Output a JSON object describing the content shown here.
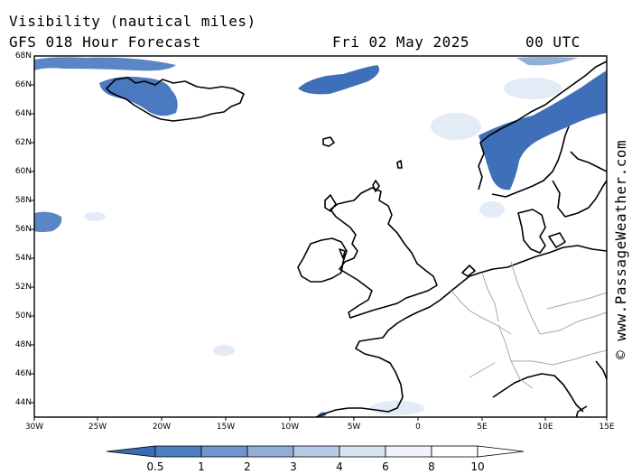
{
  "header": {
    "title": "Visibility (nautical miles)",
    "subtitle": "GFS 018 Hour Forecast",
    "date": "Fri 02 May 2025",
    "time": "00 UTC"
  },
  "map": {
    "lat_labels": [
      "68N",
      "66N",
      "64N",
      "62N",
      "60N",
      "58N",
      "56N",
      "54N",
      "52N",
      "50N",
      "48N",
      "46N",
      "44N"
    ],
    "lon_labels": [
      "30W",
      "25W",
      "20W",
      "15W",
      "10W",
      "5W",
      "0",
      "5E",
      "10E",
      "15E"
    ],
    "colors": {
      "land_outline": "#000000",
      "border": "#a0a0a0",
      "low_vis": "#3f6fb8",
      "haze": "#dfe9f5"
    }
  },
  "credit": "© www.PassageWeather.com",
  "colorbar": {
    "labels": [
      "0.5",
      "1",
      "2",
      "3",
      "4",
      "6",
      "8",
      "10"
    ],
    "colors": [
      "#3a6cb5",
      "#4d7ec0",
      "#6e95cc",
      "#93afd9",
      "#b7cbe6",
      "#d7e3f1",
      "#f0f4fa",
      "#ffffff"
    ]
  }
}
